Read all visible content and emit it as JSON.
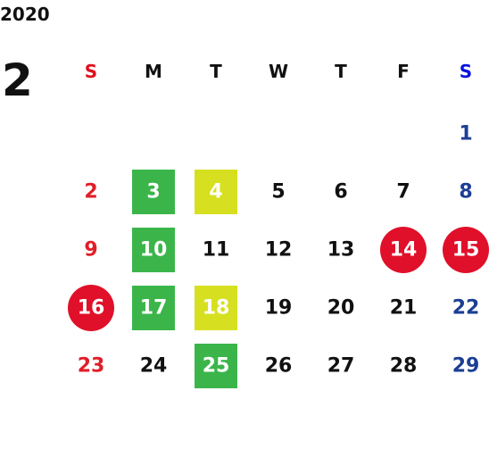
{
  "year": "2020",
  "month": "2",
  "weekdays": [
    "S",
    "M",
    "T",
    "W",
    "T",
    "F",
    "S"
  ],
  "weeks": [
    [
      null,
      null,
      null,
      null,
      null,
      null,
      1
    ],
    [
      2,
      {
        "day": 3,
        "highlight": "square",
        "color": "#3bb54a"
      },
      {
        "day": 4,
        "highlight": "square",
        "color": "#d6e020"
      },
      5,
      6,
      7,
      8
    ],
    [
      9,
      {
        "day": 10,
        "highlight": "square",
        "color": "#3bb54a"
      },
      11,
      12,
      13,
      {
        "day": 14,
        "highlight": "circle",
        "color": "#e0102a"
      },
      {
        "day": 15,
        "highlight": "circle",
        "color": "#e0102a"
      }
    ],
    [
      {
        "day": 16,
        "highlight": "circle",
        "color": "#e0102a"
      },
      {
        "day": 17,
        "highlight": "square",
        "color": "#3bb54a"
      },
      {
        "day": 18,
        "highlight": "square",
        "color": "#d6e020"
      },
      19,
      20,
      21,
      22
    ],
    [
      23,
      24,
      {
        "day": 25,
        "highlight": "square",
        "color": "#3bb54a"
      },
      26,
      27,
      28,
      29
    ]
  ]
}
